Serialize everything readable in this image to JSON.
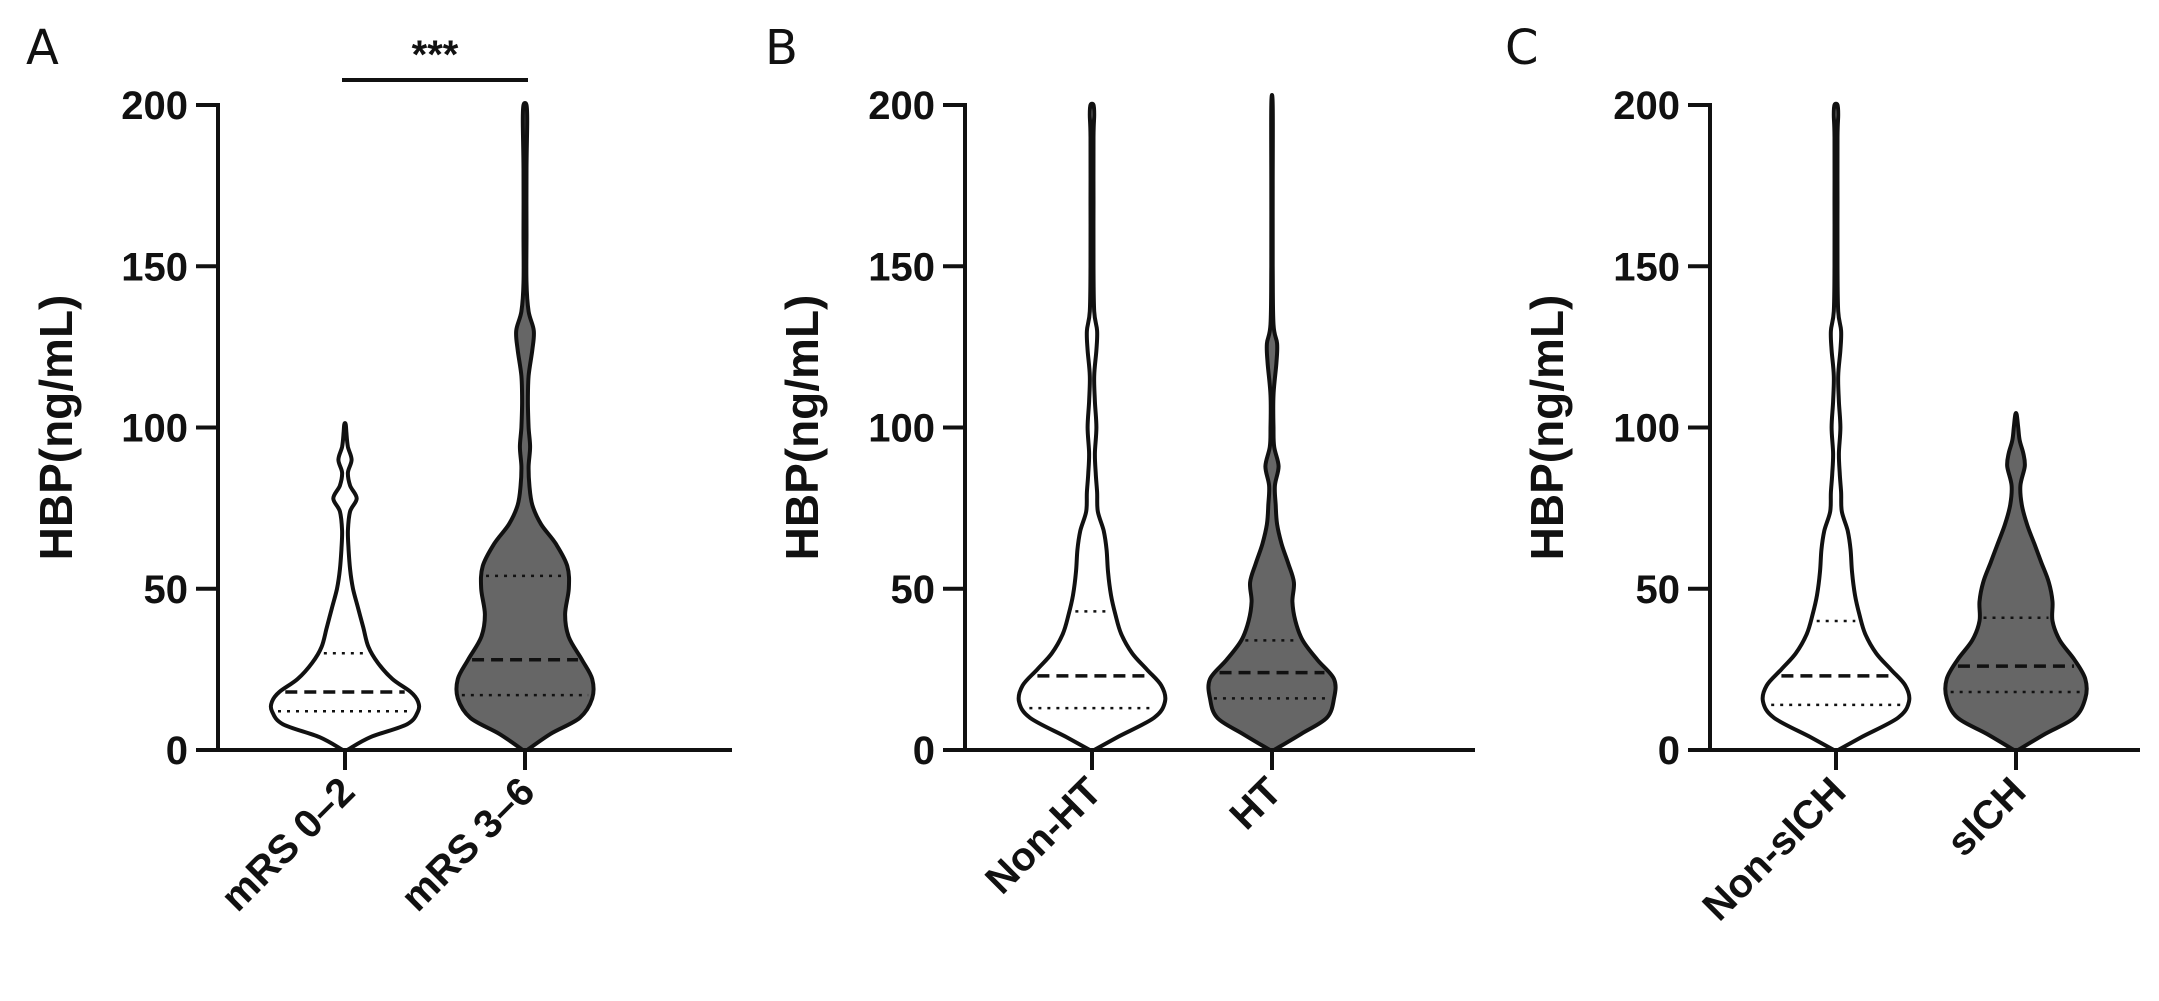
{
  "chart_data": [
    {
      "panel": "A",
      "type": "violin",
      "ylabel": "HBP(ng/mL)",
      "ylim": [
        0,
        200
      ],
      "yticks": [
        0,
        50,
        100,
        150,
        200
      ],
      "categories": [
        "mRS 0–2",
        "mRS 3–6"
      ],
      "significance": {
        "label": "***",
        "between": [
          0,
          1
        ]
      },
      "series": [
        {
          "fill": "#ffffff",
          "max": 101,
          "q1": 12,
          "median": 18,
          "q3": 30,
          "profile": [
            [
              0,
              0.03
            ],
            [
              4,
              0.35
            ],
            [
              8,
              0.85
            ],
            [
              12,
              1.0
            ],
            [
              15,
              1.0
            ],
            [
              18,
              0.9
            ],
            [
              22,
              0.65
            ],
            [
              27,
              0.45
            ],
            [
              32,
              0.32
            ],
            [
              38,
              0.25
            ],
            [
              44,
              0.18
            ],
            [
              50,
              0.11
            ],
            [
              56,
              0.07
            ],
            [
              62,
              0.05
            ],
            [
              68,
              0.04
            ],
            [
              74,
              0.07
            ],
            [
              78,
              0.16
            ],
            [
              82,
              0.07
            ],
            [
              86,
              0.04
            ],
            [
              90,
              0.09
            ],
            [
              94,
              0.04
            ],
            [
              98,
              0.02
            ],
            [
              101,
              0.01
            ]
          ]
        },
        {
          "fill": "#666666",
          "max": 200,
          "q1": 17,
          "median": 28,
          "q3": 54,
          "profile": [
            [
              0,
              0.03
            ],
            [
              5,
              0.35
            ],
            [
              10,
              0.75
            ],
            [
              16,
              0.92
            ],
            [
              22,
              0.92
            ],
            [
              28,
              0.78
            ],
            [
              35,
              0.6
            ],
            [
              42,
              0.55
            ],
            [
              50,
              0.6
            ],
            [
              57,
              0.58
            ],
            [
              64,
              0.42
            ],
            [
              70,
              0.22
            ],
            [
              76,
              0.1
            ],
            [
              82,
              0.06
            ],
            [
              88,
              0.05
            ],
            [
              94,
              0.07
            ],
            [
              100,
              0.05
            ],
            [
              108,
              0.04
            ],
            [
              116,
              0.05
            ],
            [
              124,
              0.1
            ],
            [
              130,
              0.12
            ],
            [
              136,
              0.05
            ],
            [
              145,
              0.02
            ],
            [
              160,
              0.02
            ],
            [
              180,
              0.02
            ],
            [
              195,
              0.03
            ],
            [
              200,
              0.02
            ]
          ]
        }
      ]
    },
    {
      "panel": "B",
      "type": "violin",
      "ylabel": "HBP(ng/mL)",
      "ylim": [
        0,
        200
      ],
      "yticks": [
        0,
        50,
        100,
        150,
        200
      ],
      "categories": [
        "Non-HT",
        "HT"
      ],
      "series": [
        {
          "fill": "#ffffff",
          "max": 200,
          "q1": 13,
          "median": 23,
          "q3": 43,
          "profile": [
            [
              0,
              0.03
            ],
            [
              4,
              0.35
            ],
            [
              10,
              0.85
            ],
            [
              15,
              1.0
            ],
            [
              20,
              0.95
            ],
            [
              25,
              0.75
            ],
            [
              30,
              0.55
            ],
            [
              36,
              0.4
            ],
            [
              42,
              0.32
            ],
            [
              48,
              0.26
            ],
            [
              55,
              0.22
            ],
            [
              62,
              0.2
            ],
            [
              68,
              0.16
            ],
            [
              74,
              0.08
            ],
            [
              80,
              0.07
            ],
            [
              86,
              0.05
            ],
            [
              92,
              0.04
            ],
            [
              100,
              0.06
            ],
            [
              108,
              0.04
            ],
            [
              116,
              0.03
            ],
            [
              124,
              0.06
            ],
            [
              130,
              0.07
            ],
            [
              136,
              0.03
            ],
            [
              150,
              0.02
            ],
            [
              170,
              0.02
            ],
            [
              190,
              0.02
            ],
            [
              197,
              0.03
            ],
            [
              200,
              0.02
            ]
          ]
        },
        {
          "fill": "#666666",
          "max": 200,
          "q1": 16,
          "median": 24,
          "q3": 34,
          "profile": [
            [
              0,
              0.03
            ],
            [
              5,
              0.4
            ],
            [
              10,
              0.75
            ],
            [
              16,
              0.85
            ],
            [
              22,
              0.85
            ],
            [
              28,
              0.62
            ],
            [
              34,
              0.42
            ],
            [
              40,
              0.32
            ],
            [
              46,
              0.28
            ],
            [
              52,
              0.3
            ],
            [
              58,
              0.22
            ],
            [
              64,
              0.13
            ],
            [
              70,
              0.07
            ],
            [
              76,
              0.05
            ],
            [
              82,
              0.04
            ],
            [
              88,
              0.09
            ],
            [
              94,
              0.03
            ],
            [
              100,
              0.02
            ],
            [
              110,
              0.02
            ],
            [
              120,
              0.06
            ],
            [
              126,
              0.07
            ],
            [
              132,
              0.02
            ],
            [
              150,
              0.01
            ],
            [
              175,
              0.01
            ],
            [
              200,
              0.01
            ]
          ]
        }
      ]
    },
    {
      "panel": "C",
      "type": "violin",
      "ylabel": "HBP(ng/mL)",
      "ylim": [
        0,
        200
      ],
      "yticks": [
        0,
        50,
        100,
        150,
        200
      ],
      "categories": [
        "Non-sICH",
        "sICH"
      ],
      "series": [
        {
          "fill": "#ffffff",
          "max": 200,
          "q1": 14,
          "median": 23,
          "q3": 40,
          "profile": [
            [
              0,
              0.03
            ],
            [
              4,
              0.35
            ],
            [
              10,
              0.85
            ],
            [
              15,
              1.0
            ],
            [
              20,
              0.95
            ],
            [
              25,
              0.75
            ],
            [
              30,
              0.55
            ],
            [
              36,
              0.4
            ],
            [
              42,
              0.32
            ],
            [
              48,
              0.26
            ],
            [
              55,
              0.22
            ],
            [
              62,
              0.2
            ],
            [
              68,
              0.16
            ],
            [
              74,
              0.08
            ],
            [
              80,
              0.07
            ],
            [
              86,
              0.05
            ],
            [
              92,
              0.04
            ],
            [
              100,
              0.06
            ],
            [
              108,
              0.04
            ],
            [
              116,
              0.03
            ],
            [
              124,
              0.06
            ],
            [
              130,
              0.07
            ],
            [
              136,
              0.03
            ],
            [
              150,
              0.02
            ],
            [
              170,
              0.02
            ],
            [
              190,
              0.02
            ],
            [
              197,
              0.03
            ],
            [
              200,
              0.02
            ]
          ]
        },
        {
          "fill": "#666666",
          "max": 104,
          "q1": 18,
          "median": 26,
          "q3": 41,
          "profile": [
            [
              0,
              0.03
            ],
            [
              5,
              0.4
            ],
            [
              10,
              0.8
            ],
            [
              16,
              0.95
            ],
            [
              22,
              0.95
            ],
            [
              28,
              0.8
            ],
            [
              34,
              0.6
            ],
            [
              40,
              0.5
            ],
            [
              46,
              0.5
            ],
            [
              52,
              0.45
            ],
            [
              58,
              0.35
            ],
            [
              64,
              0.25
            ],
            [
              70,
              0.15
            ],
            [
              76,
              0.08
            ],
            [
              82,
              0.06
            ],
            [
              88,
              0.12
            ],
            [
              92,
              0.1
            ],
            [
              96,
              0.05
            ],
            [
              100,
              0.03
            ],
            [
              104,
              0.01
            ]
          ]
        }
      ]
    }
  ]
}
